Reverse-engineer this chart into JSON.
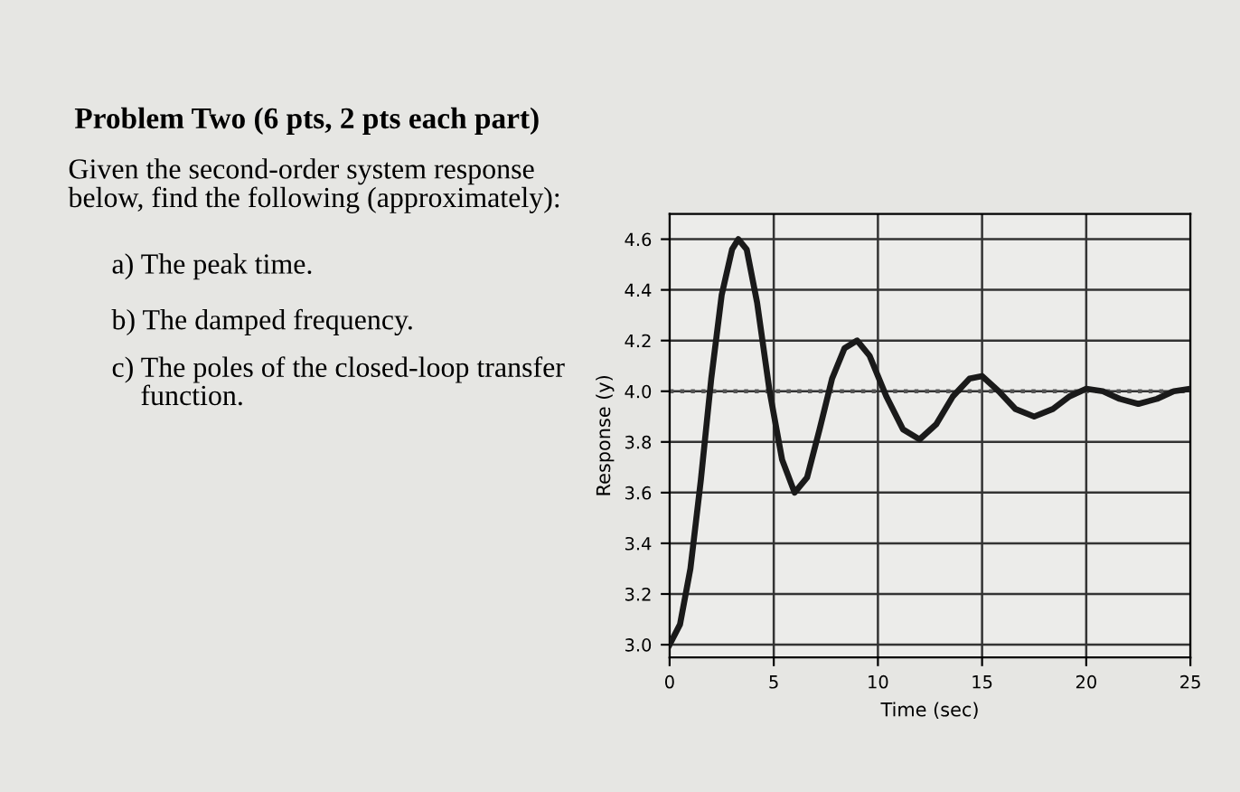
{
  "chart_data": {
    "type": "line",
    "title": "Problem Two (6 pts, 2 pts each part)",
    "annotations": [
      "Given the second-order system response\nbelow, find the following (approximately):",
      "a) The peak time.",
      "b) The damped frequency.",
      "c) The poles of the closed-loop transfer\n    function."
    ],
    "xlabel": "Time (sec)",
    "ylabel": "Response (y)",
    "series": [
      {
        "color": "#1a1a1a",
        "x": [
          0,
          0.5,
          1,
          1.5,
          2,
          2.5,
          3,
          3.3,
          3.7,
          4.2,
          4.8,
          5.4,
          6.0,
          6.6,
          7.2,
          7.8,
          8.4,
          9.0,
          9.6,
          10.4,
          11.2,
          12.0,
          12.8,
          13.6,
          14.4,
          15.0,
          15.8,
          16.6,
          17.5,
          18.4,
          19.2,
          20.0,
          20.8,
          21.6,
          22.5,
          23.4,
          24.2,
          25
        ],
        "values": [
          3.0,
          3.08,
          3.3,
          3.65,
          4.05,
          4.38,
          4.56,
          4.6,
          4.56,
          4.35,
          4.0,
          3.73,
          3.6,
          3.66,
          3.85,
          4.05,
          4.17,
          4.2,
          4.14,
          3.98,
          3.85,
          3.81,
          3.87,
          3.98,
          4.05,
          4.06,
          4.0,
          3.93,
          3.9,
          3.93,
          3.98,
          4.01,
          4.0,
          3.97,
          3.95,
          3.97,
          4.0,
          4.01
        ]
      }
    ],
    "ref_lines": [
      {
        "axis": "y",
        "value": 4.0,
        "color": "#555555",
        "line_style": "dotted"
      }
    ],
    "xlim": [
      0,
      25
    ],
    "xticks": [
      0,
      5,
      10,
      15,
      20,
      25
    ],
    "ylim": [
      2.95,
      4.7
    ],
    "yticks": [
      {
        "value": 3,
        "label": "3.0"
      },
      3.2,
      3.4,
      3.6,
      3.8,
      {
        "value": 4,
        "label": "4.0"
      },
      4.2,
      4.4,
      4.6
    ],
    "grid": true,
    "marker": "none",
    "line_style": "solid"
  }
}
